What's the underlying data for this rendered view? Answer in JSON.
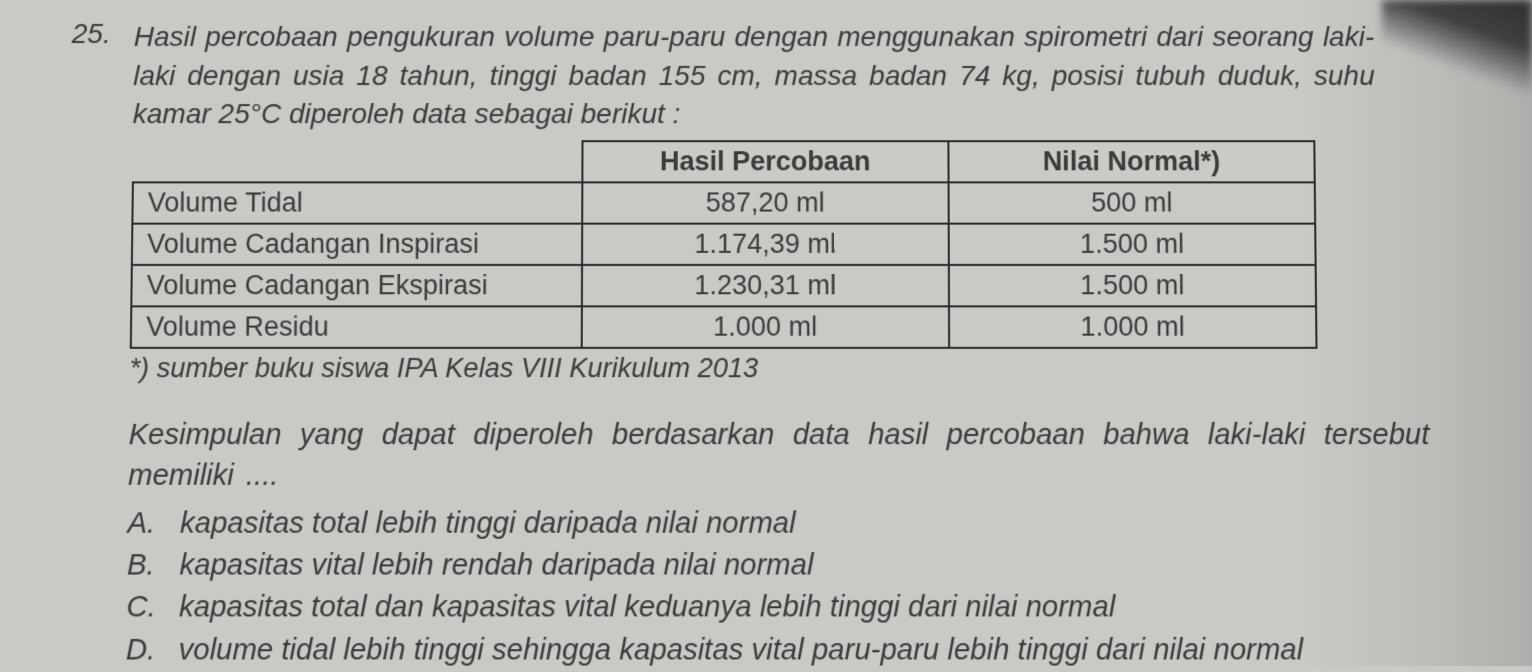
{
  "question": {
    "number": "25.",
    "text_line1": "Hasil percobaan pengukuran volume paru-paru dengan menggunakan spirometri dari",
    "text_line2": "seorang laki-laki dengan usia 18 tahun, tinggi badan 155 cm, massa badan 74 kg, posisi",
    "text_line3": "tubuh duduk, suhu kamar 25°C diperoleh data sebagai berikut :"
  },
  "table": {
    "type": "table",
    "columns": [
      "",
      "Hasil Percobaan",
      "Nilai Normal*)"
    ],
    "rows": [
      [
        "Volume Tidal",
        "587,20 ml",
        "500 ml"
      ],
      [
        "Volume Cadangan Inspirasi",
        "1.174,39 ml",
        "1.500 ml"
      ],
      [
        "Volume Cadangan Ekspirasi",
        "1.230,31 ml",
        "1.500 ml"
      ],
      [
        "Volume Residu",
        "1.000 ml",
        "1.000 ml"
      ]
    ],
    "border_color": "#2a2a2a",
    "header_font_weight": "bold",
    "cell_fontsize": 27,
    "col_widths_pct": [
      38,
      31,
      31
    ]
  },
  "footnote": "*) sumber buku siswa IPA Kelas VIII Kurikulum 2013",
  "prompt": "Kesimpulan yang dapat diperoleh berdasarkan data hasil percobaan bahwa laki-laki tersebut memiliki ....",
  "options": [
    {
      "letter": "A.",
      "text": "kapasitas total lebih tinggi daripada nilai normal"
    },
    {
      "letter": "B.",
      "text": "kapasitas vital  lebih rendah daripada nilai normal"
    },
    {
      "letter": "C.",
      "text": "kapasitas total dan kapasitas vital keduanya lebih tinggi dari nilai normal"
    },
    {
      "letter": "D.",
      "text": "volume tidal lebih tinggi sehingga kapasitas vital paru-paru lebih tinggi dari nilai normal"
    }
  ],
  "colors": {
    "page_bg": "#c8cac6",
    "text": "#3a3b3a",
    "table_border": "#2a2a2a"
  },
  "typography": {
    "family": "Verdana",
    "body_fontsize": 28,
    "body_style": "italic",
    "option_fontsize": 29
  }
}
